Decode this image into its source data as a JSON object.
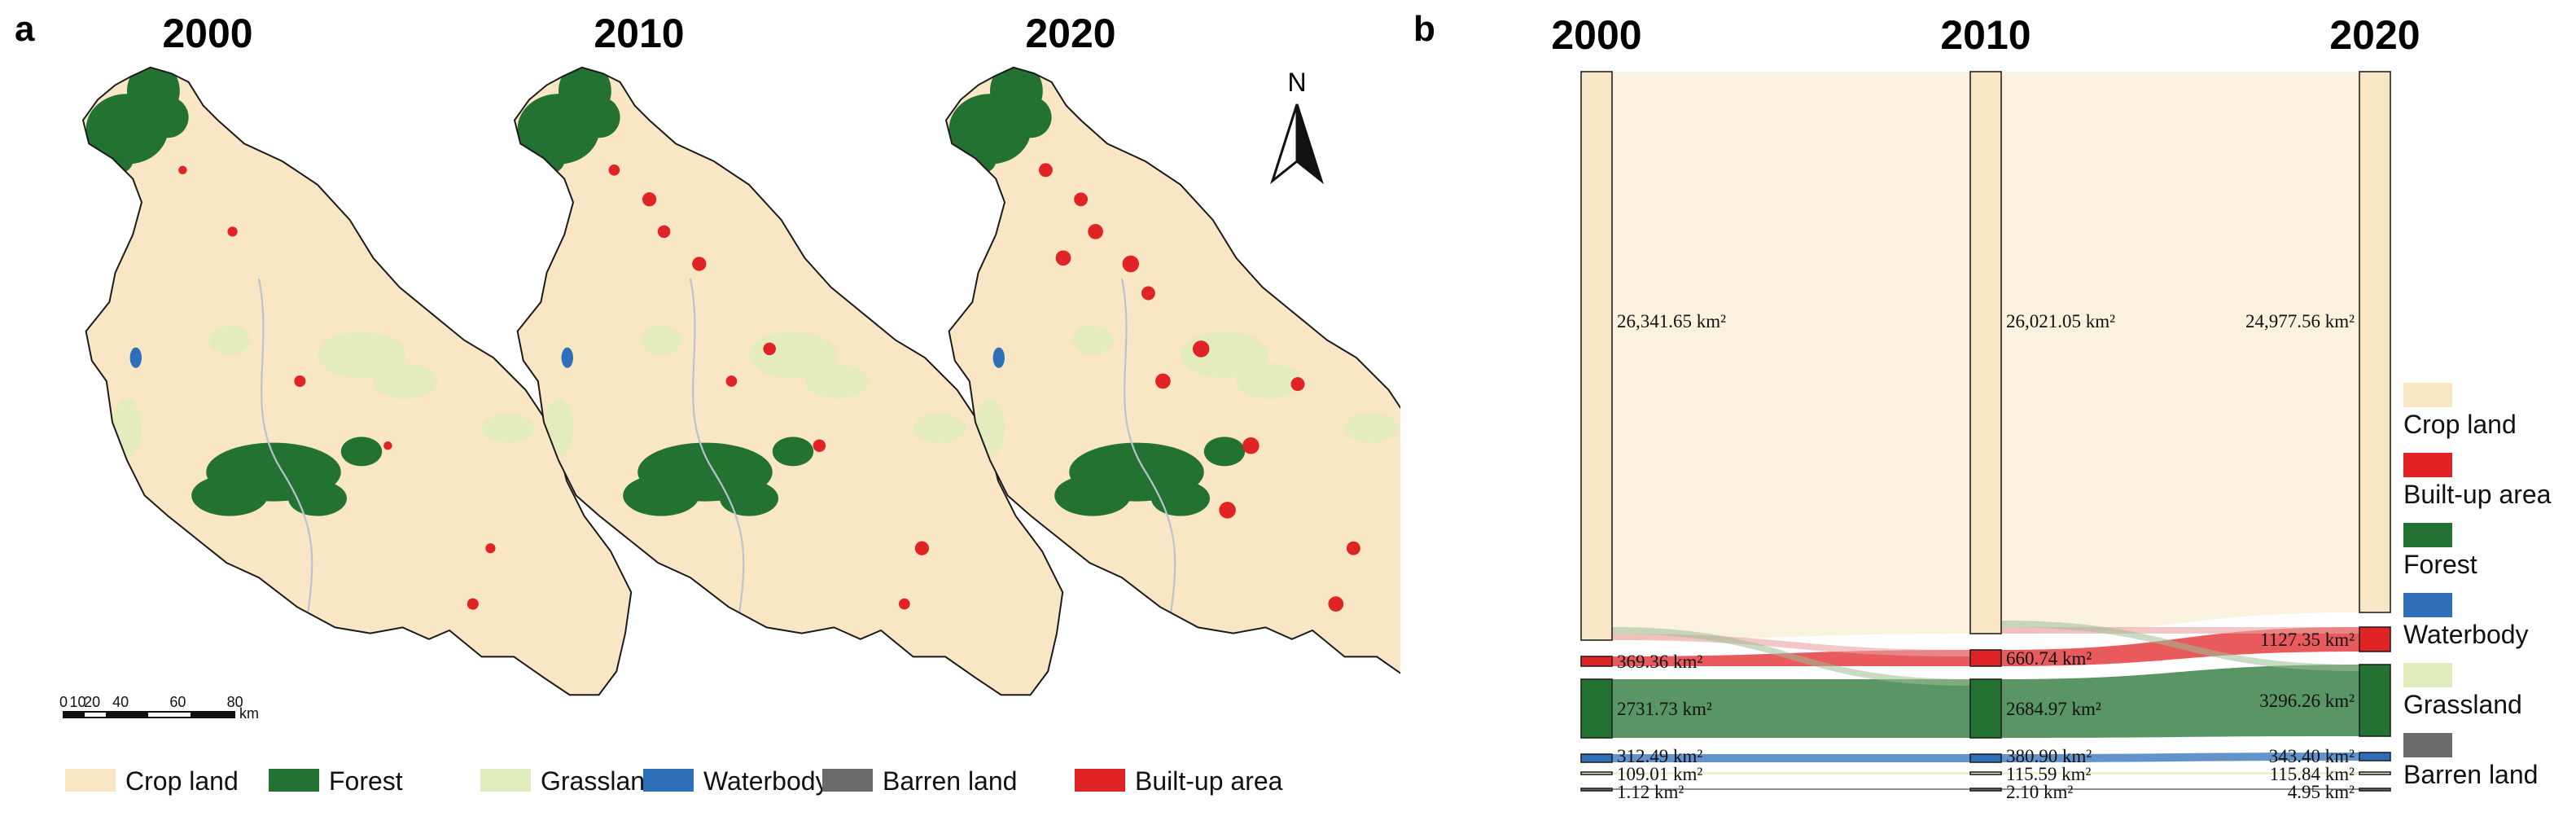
{
  "panel_a": {
    "letter": "a",
    "maps": [
      {
        "year": "2000",
        "builtup_level": 1
      },
      {
        "year": "2010",
        "builtup_level": 2
      },
      {
        "year": "2020",
        "builtup_level": 3
      }
    ],
    "north_label": "N",
    "scalebar": {
      "ticks": [
        "0",
        "10",
        "20",
        "40",
        "60",
        "80"
      ],
      "unit": "km"
    },
    "legend": [
      {
        "label": "Crop land",
        "color": "#f8e6c4"
      },
      {
        "label": "Forest",
        "color": "#237232"
      },
      {
        "label": "Grassland",
        "color": "#e1ecbc"
      },
      {
        "label": "Waterbody",
        "color": "#2f6fba"
      },
      {
        "label": "Barren land",
        "color": "#6b6b6b"
      },
      {
        "label": "Built-up area",
        "color": "#e02324"
      }
    ]
  },
  "panel_b": {
    "letter": "b",
    "years": [
      "2000",
      "2010",
      "2020"
    ],
    "chart_data": {
      "type": "sankey",
      "unit": "km²",
      "columns": [
        "2000",
        "2010",
        "2020"
      ],
      "nodes": {
        "2000": [
          {
            "class": "Crop land",
            "value_label": "26,341.65 km²",
            "value": 26341.65
          },
          {
            "class": "Built-up area",
            "value_label": "369.36 km²",
            "value": 369.36
          },
          {
            "class": "Forest",
            "value_label": "2731.73 km²",
            "value": 2731.73
          },
          {
            "class": "Waterbody",
            "value_label": "312.49 km²",
            "value": 312.49
          },
          {
            "class": "Grassland",
            "value_label": "109.01 km²",
            "value": 109.01
          },
          {
            "class": "Barren land",
            "value_label": "1.12 km²",
            "value": 1.12
          }
        ],
        "2010": [
          {
            "class": "Crop land",
            "value_label": "26,021.05 km²",
            "value": 26021.05
          },
          {
            "class": "Built-up area",
            "value_label": "660.74 km²",
            "value": 660.74
          },
          {
            "class": "Forest",
            "value_label": "2684.97 km²",
            "value": 2684.97
          },
          {
            "class": "Waterbody",
            "value_label": "380.90 km²",
            "value": 380.9
          },
          {
            "class": "Grassland",
            "value_label": "115.59 km²",
            "value": 115.59
          },
          {
            "class": "Barren land",
            "value_label": "2.10 km²",
            "value": 2.1
          }
        ],
        "2020": [
          {
            "class": "Crop land",
            "value_label": "24,977.56 km²",
            "value": 24977.56
          },
          {
            "class": "Built-up area",
            "value_label": "1127.35 km²",
            "value": 1127.35
          },
          {
            "class": "Forest",
            "value_label": "3296.26 km²",
            "value": 3296.26
          },
          {
            "class": "Waterbody",
            "value_label": "343.40 km²",
            "value": 343.4
          },
          {
            "class": "Grassland",
            "value_label": "115.84 km²",
            "value": 115.84
          },
          {
            "class": "Barren land",
            "value_label": "4.95 km²",
            "value": 4.95
          }
        ]
      },
      "legend_position": "right"
    },
    "legend": [
      {
        "label": "Crop land",
        "color": "#f8e6c4"
      },
      {
        "label": "Built-up area",
        "color": "#e02324"
      },
      {
        "label": "Forest",
        "color": "#237232"
      },
      {
        "label": "Waterbody",
        "color": "#2f6fba"
      },
      {
        "label": "Grassland",
        "color": "#e1ecbc"
      },
      {
        "label": "Barren land",
        "color": "#6b6b6b"
      }
    ]
  }
}
